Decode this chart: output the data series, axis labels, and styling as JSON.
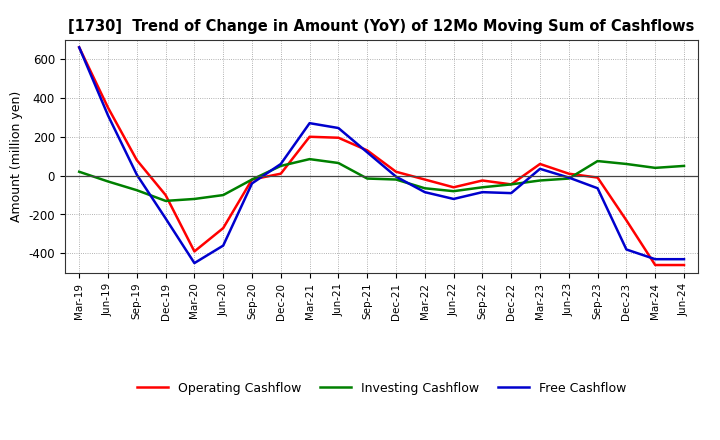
{
  "title": "[1730]  Trend of Change in Amount (YoY) of 12Mo Moving Sum of Cashflows",
  "ylabel": "Amount (million yen)",
  "x_labels": [
    "Mar-19",
    "Jun-19",
    "Sep-19",
    "Dec-19",
    "Mar-20",
    "Jun-20",
    "Sep-20",
    "Dec-20",
    "Mar-21",
    "Jun-21",
    "Sep-21",
    "Dec-21",
    "Mar-22",
    "Jun-22",
    "Sep-22",
    "Dec-22",
    "Mar-23",
    "Jun-23",
    "Sep-23",
    "Dec-23",
    "Mar-24",
    "Jun-24"
  ],
  "operating": [
    660,
    350,
    80,
    -100,
    -390,
    -270,
    -20,
    10,
    200,
    195,
    130,
    20,
    -20,
    -60,
    -25,
    -45,
    60,
    10,
    -10,
    -230,
    -460,
    -460
  ],
  "investing": [
    20,
    -30,
    -75,
    -130,
    -120,
    -100,
    -20,
    50,
    85,
    65,
    -15,
    -20,
    -65,
    -80,
    -60,
    -45,
    -25,
    -15,
    75,
    60,
    40,
    50
  ],
  "free": [
    660,
    310,
    5,
    -220,
    -450,
    -360,
    -40,
    60,
    270,
    245,
    120,
    -5,
    -85,
    -120,
    -85,
    -90,
    35,
    -10,
    -65,
    -380,
    -430,
    -430
  ],
  "operating_color": "#ff0000",
  "investing_color": "#008000",
  "free_color": "#0000cd",
  "ylim": [
    -500,
    700
  ],
  "yticks": [
    -400,
    -200,
    0,
    200,
    400,
    600
  ],
  "bg_color": "#ffffff",
  "grid_color": "#999999",
  "legend_labels": [
    "Operating Cashflow",
    "Investing Cashflow",
    "Free Cashflow"
  ]
}
